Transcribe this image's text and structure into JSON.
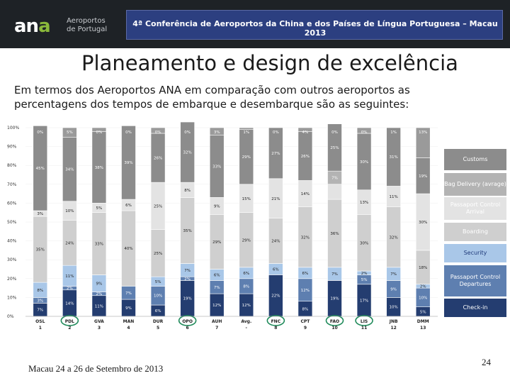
{
  "header": {
    "logo_mark_left": "an",
    "logo_mark_accent": "a",
    "logo_subtitle_line1": "Aeroportos",
    "logo_subtitle_line2": "de Portugal",
    "conference": "4ª Conferência de Aeroportos da China e dos Países de Língua Portuguesa – Macau 2013"
  },
  "slide": {
    "title": "Planeamento e design de excelência",
    "intro": "Em termos dos Aeroportos ANA em comparação com outros aeroportos as percentagens dos tempos de embarque e desembarque são as seguintes:"
  },
  "chart_data": {
    "type": "bar",
    "stacked": true,
    "ylim": [
      0,
      100
    ],
    "y_ticks": [
      "0%",
      "10%",
      "20%",
      "30%",
      "40%",
      "50%",
      "60%",
      "70%",
      "80%",
      "90%",
      "100%"
    ],
    "categories": [
      "OSL",
      "PDL",
      "GVA",
      "MAN",
      "DUR",
      "OPO",
      "AUH",
      "Avg.",
      "FNC",
      "CPT",
      "FAO",
      "LIS",
      "JNB",
      "DMM"
    ],
    "category_numbers": [
      "1",
      "2",
      "3",
      "4",
      "5",
      "6",
      "7",
      "-",
      "8",
      "9",
      "10",
      "11",
      "12",
      "13"
    ],
    "highlighted": [
      "PDL",
      "OPO",
      "FNC",
      "FAO",
      "LIS"
    ],
    "series": [
      {
        "name": "Check-in",
        "color": "#243d70",
        "values": [
          7,
          14,
          11,
          9,
          6,
          19,
          12,
          12,
          22,
          8,
          19,
          17,
          10,
          5
        ],
        "labels": [
          "7%",
          "14%",
          "11%",
          "9%",
          "6%",
          "19%",
          "12%",
          "12%",
          "22%",
          "8%",
          "19%",
          "17%",
          "10%",
          "5%"
        ]
      },
      {
        "name": "Passaport Control Departures",
        "color": "#5e7fb0",
        "values": [
          3,
          2,
          2,
          7,
          10,
          2,
          7,
          8,
          0,
          12,
          0,
          5,
          9,
          10
        ],
        "labels": [
          "3%",
          "2%",
          "2%",
          "7%",
          "10%",
          "2%",
          "7%",
          "8%",
          "",
          "12%",
          "",
          "5%",
          "9%",
          "10%"
        ]
      },
      {
        "name": "Security",
        "color": "#a9c7e8",
        "values": [
          8,
          11,
          9,
          0,
          5,
          7,
          6,
          6,
          6,
          6,
          7,
          2,
          7,
          2
        ],
        "labels": [
          "8%",
          "11%",
          "9%",
          "",
          "5%",
          "7%",
          "6%",
          "6%",
          "6%",
          "6%",
          "7%",
          "2%",
          "7%",
          "2%"
        ]
      },
      {
        "name": "Boarding",
        "color": "#cfcfcf",
        "values": [
          35,
          24,
          33,
          40,
          25,
          35,
          29,
          29,
          24,
          32,
          36,
          30,
          32,
          18
        ],
        "labels": [
          "35%",
          "24%",
          "33%",
          "40%",
          "25%",
          "35%",
          "29%",
          "29%",
          "24%",
          "32%",
          "36%",
          "30%",
          "32%",
          "18%"
        ]
      },
      {
        "name": "Passaport Control Arrival",
        "color": "#e3e3e3",
        "values": [
          3,
          10,
          5,
          6,
          25,
          8,
          9,
          15,
          21,
          14,
          8,
          13,
          11,
          30
        ],
        "labels": [
          "3%",
          "10%",
          "5%",
          "6%",
          "25%",
          "8%",
          "9%",
          "15%",
          "21%",
          "14%",
          "",
          "13%",
          "11%",
          "30%"
        ]
      },
      {
        "name": "Bag Delivery (avrage)",
        "color": "#b3b3b3",
        "values": [
          0,
          0,
          0,
          0,
          0,
          0,
          0,
          0,
          0,
          0,
          7,
          0,
          0,
          0
        ],
        "labels": [
          "",
          "",
          "",
          "",
          "",
          "",
          "",
          "",
          "",
          "",
          "7%",
          "",
          "",
          ""
        ]
      },
      {
        "name": "Customs",
        "color": "#8c8c8c",
        "values": [
          45,
          34,
          38,
          39,
          26,
          32,
          33,
          29,
          27,
          26,
          25,
          30,
          31,
          19
        ],
        "labels": [
          "45%",
          "34%",
          "38%",
          "39%",
          "26%",
          "32%",
          "33%",
          "29%",
          "27%",
          "26%",
          "25%",
          "30%",
          "31%",
          "19%"
        ]
      }
    ],
    "top_labels": [
      "0%",
      "5%",
      "0%",
      "0%",
      "0%",
      "0%",
      "3%",
      "1%",
      "0%",
      "4%",
      "0%",
      "0%",
      "1%",
      "13%"
    ]
  },
  "legend": [
    {
      "label": "Customs",
      "bg": "#8c8c8c",
      "fg": "#ffffff"
    },
    {
      "label": "Bag Delivery (avrage)",
      "bg": "#b3b3b3",
      "fg": "#ffffff"
    },
    {
      "label": "Passaport Control Arrival",
      "bg": "#e3e3e3",
      "fg": "#ffffff"
    },
    {
      "label": "Boarding",
      "bg": "#cfcfcf",
      "fg": "#ffffff"
    },
    {
      "label": "Security",
      "bg": "#a9c7e8",
      "fg": "#1f3a7a"
    },
    {
      "label": "Passaport Control Departures",
      "bg": "#5e7fb0",
      "fg": "#ffffff"
    },
    {
      "label": "Check-in",
      "bg": "#243d70",
      "fg": "#ffffff"
    }
  ],
  "footer": {
    "text": "Macau 24 a 26 de Setembro de 2013",
    "page": "24"
  }
}
